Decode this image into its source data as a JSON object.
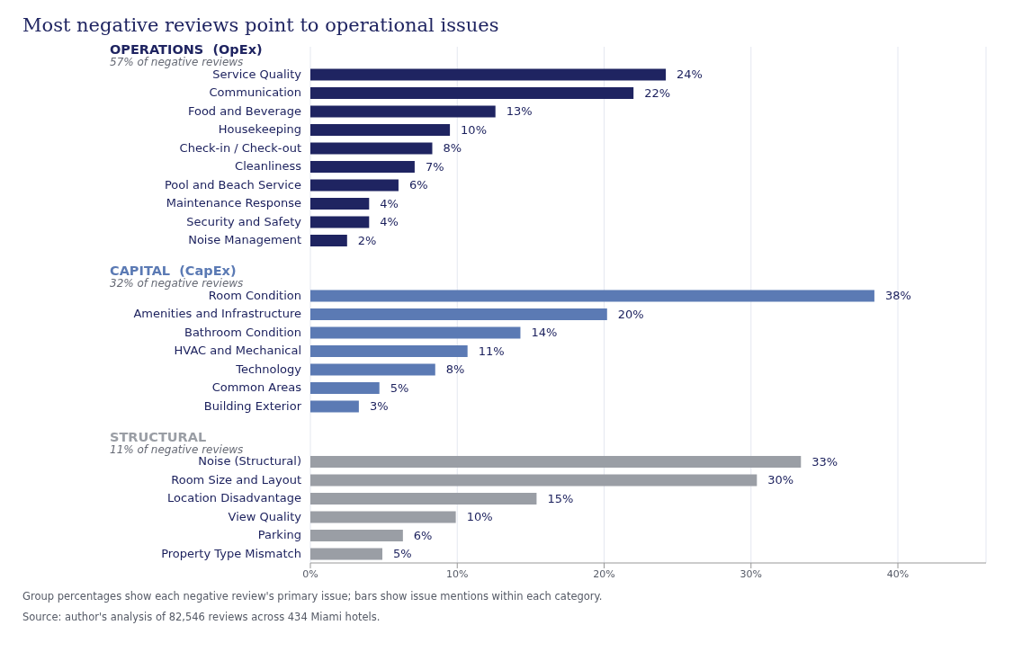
{
  "chart_data": {
    "type": "bar",
    "orientation": "horizontal",
    "title": "Most negative reviews point to operational issues",
    "categories": [
      null,
      "Service Quality",
      "Communication",
      "Food and Beverage",
      "Housekeeping",
      "Check-in / Check-out",
      "Cleanliness",
      "Pool and Beach Service",
      "Maintenance Response",
      "Security and Safety",
      "Noise Management",
      null,
      null,
      "Room Condition",
      "Amenities and Infrastructure",
      "Bathroom Condition",
      "HVAC and Mechanical",
      "Technology",
      "Common Areas",
      "Building Exterior",
      null,
      null,
      "Noise (Structural)",
      "Room Size and Layout",
      "Location Disadvantage",
      "View Quality",
      "Parking",
      "Property Type Mismatch"
    ],
    "series": [
      {
        "name": "OPERATIONS  (OpEx)",
        "color": "#1f2461",
        "values": [
          null,
          24.2,
          22.0,
          12.6,
          9.5,
          8.3,
          7.1,
          6.0,
          4.0,
          4.0,
          2.5,
          null,
          null,
          null,
          null,
          null,
          null,
          null,
          null,
          null,
          null,
          null,
          null,
          null,
          null,
          null,
          null,
          null
        ],
        "value_labels": [
          null,
          "24%",
          "22%",
          "13%",
          "10%",
          "8%",
          "7%",
          "6%",
          "4%",
          "4%",
          "2%",
          null,
          null,
          null,
          null,
          null,
          null,
          null,
          null,
          null,
          null,
          null,
          null,
          null,
          null,
          null,
          null,
          null
        ]
      },
      {
        "name": "CAPITAL  (CapEx)",
        "color": "#5b7ab4",
        "values": [
          null,
          null,
          null,
          null,
          null,
          null,
          null,
          null,
          null,
          null,
          null,
          null,
          null,
          38.4,
          20.2,
          14.3,
          10.7,
          8.5,
          4.7,
          3.3,
          null,
          null,
          null,
          null,
          null,
          null,
          null,
          null
        ],
        "value_labels": [
          null,
          null,
          null,
          null,
          null,
          null,
          null,
          null,
          null,
          null,
          null,
          null,
          null,
          "38%",
          "20%",
          "14%",
          "11%",
          "8%",
          "5%",
          "3%",
          null,
          null,
          null,
          null,
          null,
          null,
          null,
          null
        ]
      },
      {
        "name": "STRUCTURAL",
        "color": "#9a9ea5",
        "values": [
          null,
          null,
          null,
          null,
          null,
          null,
          null,
          null,
          null,
          null,
          null,
          null,
          null,
          null,
          null,
          null,
          null,
          null,
          null,
          null,
          null,
          null,
          33.4,
          30.4,
          15.4,
          9.9,
          6.3,
          4.9
        ],
        "value_labels": [
          null,
          null,
          null,
          null,
          null,
          null,
          null,
          null,
          null,
          null,
          null,
          null,
          null,
          null,
          null,
          null,
          null,
          null,
          null,
          null,
          null,
          null,
          "33%",
          "30%",
          "15%",
          "10%",
          "6%",
          "5%"
        ]
      }
    ],
    "xlim": [
      0,
      46
    ],
    "xticks": [
      {
        "value": 0,
        "label": "0%"
      },
      {
        "value": 10,
        "label": "10%"
      },
      {
        "value": 20,
        "label": "20%"
      },
      {
        "value": 30,
        "label": "30%"
      },
      {
        "value": 40,
        "label": "40%"
      }
    ],
    "grid": "x",
    "annotations": [
      "57% of negative reviews",
      "32% of negative reviews",
      "11% of negative reviews",
      "Group percentages show each negative review's primary issue; bars show issue mentions within each category.",
      "Source: author's analysis of 82,546 reviews across 434 Miami hotels."
    ]
  }
}
